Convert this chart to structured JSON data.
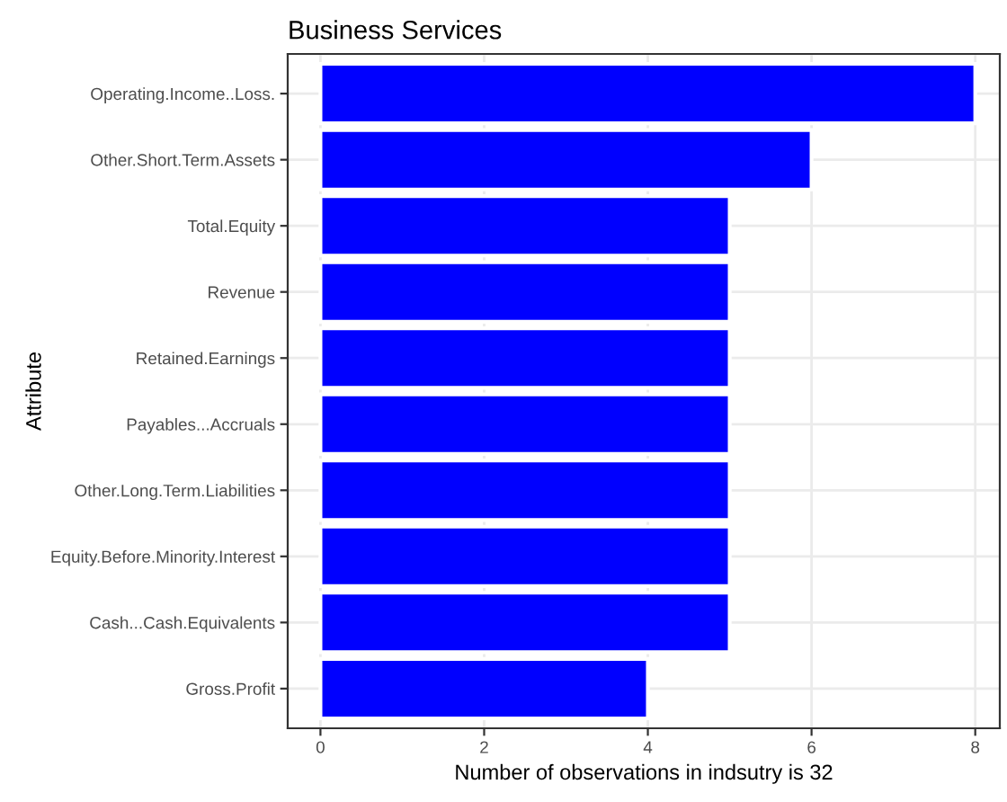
{
  "chart_data": {
    "type": "bar",
    "orientation": "horizontal",
    "title": "Business Services",
    "xlabel": "Number of observations in indsutry is 32",
    "ylabel": "Attribute",
    "categories": [
      "Operating.Income..Loss.",
      "Other.Short.Term.Assets",
      "Total.Equity",
      "Revenue",
      "Retained.Earnings",
      "Payables...Accruals",
      "Other.Long.Term.Liabilities",
      "Equity.Before.Minority.Interest",
      "Cash...Cash.Equivalents",
      "Gross.Profit"
    ],
    "values": [
      8,
      6,
      5,
      5,
      5,
      5,
      5,
      5,
      5,
      4
    ],
    "color": "#0000ff",
    "xlim": [
      -0.4,
      8.3
    ],
    "xticks": [
      0,
      2,
      4,
      6,
      8
    ],
    "grid": true
  }
}
